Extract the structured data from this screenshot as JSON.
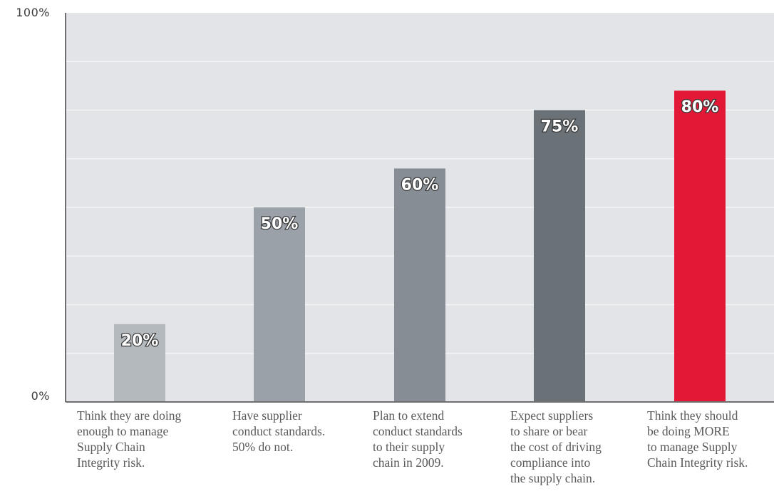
{
  "chart_data": {
    "type": "bar",
    "ylim": [
      0,
      100
    ],
    "y_tick_labels": {
      "top": "100%",
      "bottom": "0%"
    },
    "grid": true,
    "categories": [
      "Think they are doing\nenough to manage\nSupply Chain\nIntegrity risk.",
      "Have supplier\nconduct standards.\n50% do not.",
      "Plan to extend\nconduct standards\nto their supply\nchain in 2009.",
      "Expect suppliers\nto share or bear\nthe cost of driving\ncompliance into\nthe supply chain.",
      "Think they should\nbe doing MORE\nto manage Supply\nChain Integrity risk."
    ],
    "values": [
      20,
      50,
      60,
      75,
      80
    ],
    "value_labels": [
      "20%",
      "50%",
      "60%",
      "75%",
      "80%"
    ],
    "bar_colors": [
      "#b4b9be",
      "#9aa1a8",
      "#868d94",
      "#6a7278",
      "#e31837"
    ],
    "colors": {
      "plot_background": "#e2e4e7",
      "grid": "#f4f5f6",
      "axis": "#6e6e6e"
    }
  }
}
